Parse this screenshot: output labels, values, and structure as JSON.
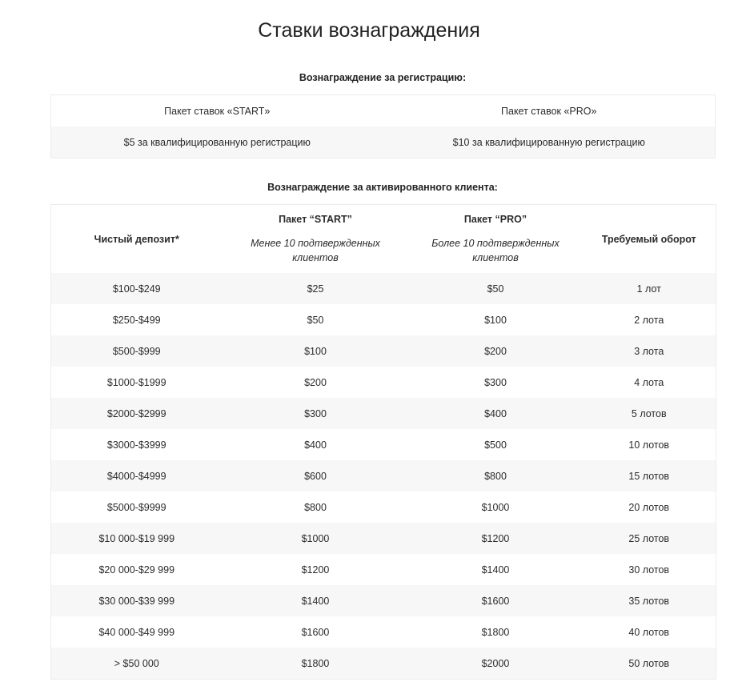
{
  "title": "Ставки вознаграждения",
  "registration": {
    "caption": "Вознаграждение за регистрацию:",
    "headers": [
      "Пакет ставок «START»",
      "Пакет ставок «PRO»"
    ],
    "values": [
      "$5 за квалифицированную регистрацию",
      "$10 за квалифицированную регистрацию"
    ]
  },
  "activation": {
    "caption": "Вознаграждение за активированного клиента:",
    "headers": {
      "deposit": "Чистый депозит*",
      "start": "Пакет “START”",
      "start_sub": "Менее 10 подтвержденных клиентов",
      "pro": "Пакет “PRO”",
      "pro_sub": "Более 10 подтвержденных клиентов",
      "turnover": "Требуемый оборот"
    },
    "rows": [
      [
        "$100-$249",
        "$25",
        "$50",
        "1 лот"
      ],
      [
        "$250-$499",
        "$50",
        "$100",
        "2 лота"
      ],
      [
        "$500-$999",
        "$100",
        "$200",
        "3 лота"
      ],
      [
        "$1000-$1999",
        "$200",
        "$300",
        "4 лота"
      ],
      [
        "$2000-$2999",
        "$300",
        "$400",
        "5 лотов"
      ],
      [
        "$3000-$3999",
        "$400",
        "$500",
        "10 лотов"
      ],
      [
        "$4000-$4999",
        "$600",
        "$800",
        "15 лотов"
      ],
      [
        "$5000-$9999",
        "$800",
        "$1000",
        "20 лотов"
      ],
      [
        "$10 000-$19 999",
        "$1000",
        "$1200",
        "25 лотов"
      ],
      [
        "$20 000-$29 999",
        "$1200",
        "$1400",
        "30 лотов"
      ],
      [
        "$30 000-$39 999",
        "$1400",
        "$1600",
        "35 лотов"
      ],
      [
        "$40 000-$49 999",
        "$1600",
        "$1800",
        "40 лотов"
      ],
      [
        "> $50 000",
        "$1800",
        "$2000",
        "50 лотов"
      ]
    ]
  }
}
